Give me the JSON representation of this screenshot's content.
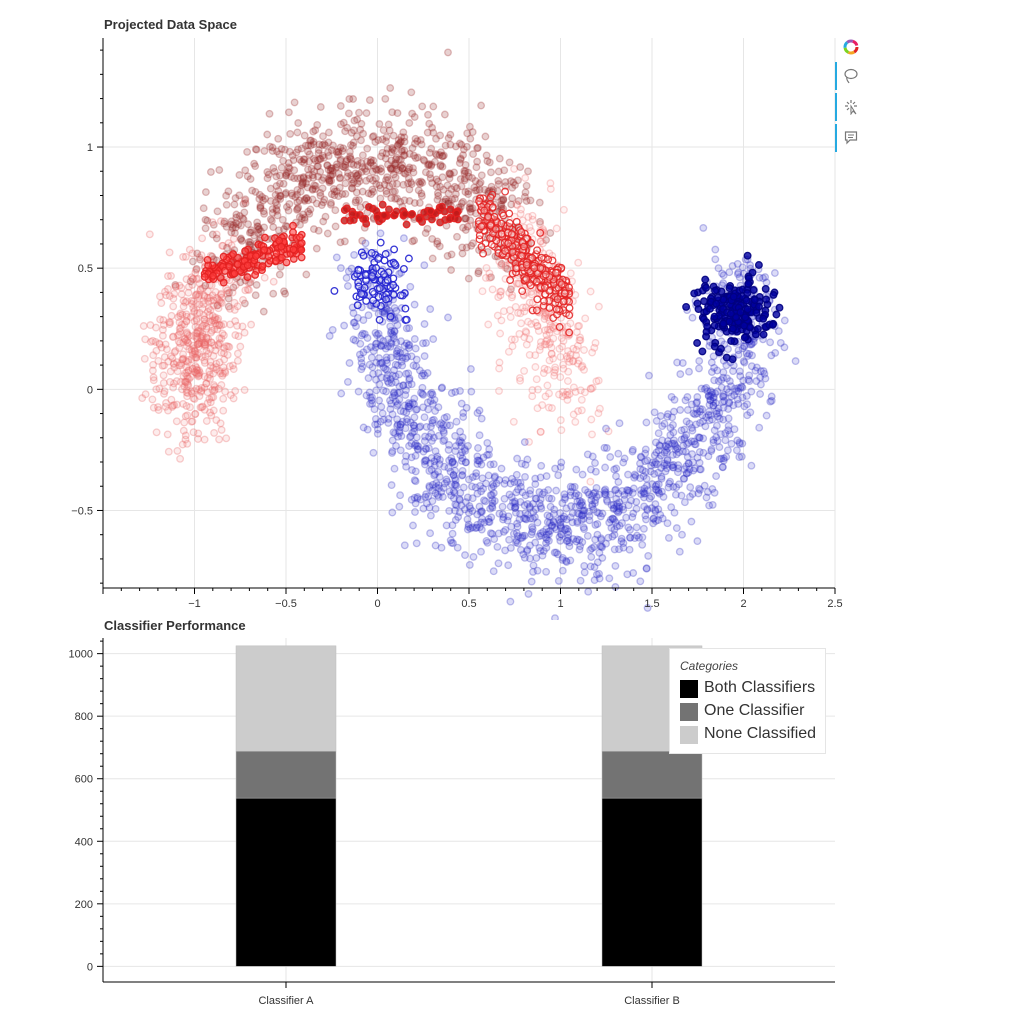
{
  "charts": {
    "scatter_title": "Projected Data Space",
    "bar_title": "Classifier Performance"
  },
  "toolbar": {
    "tools": [
      "lasso-select-icon",
      "tap-select-icon",
      "hover-icon"
    ]
  },
  "legend": {
    "title": "Categories",
    "items": [
      {
        "label": "Both Classifiers",
        "color": "#000000"
      },
      {
        "label": "One Classifier",
        "color": "#737373"
      },
      {
        "label": "None Classified",
        "color": "#cccccc"
      }
    ]
  },
  "chart_data": [
    {
      "type": "scatter",
      "title": "Projected Data Space",
      "xlim": [
        -1.5,
        2.5
      ],
      "ylim": [
        -0.82,
        1.45
      ],
      "xticks": [
        -1,
        -0.5,
        0,
        0.5,
        1,
        1.5,
        2,
        2.5
      ],
      "xtick_labels": [
        "−1",
        "−0.5",
        "0",
        "0.5",
        "1",
        "1.5",
        "2",
        "2.5"
      ],
      "yticks": [
        -0.5,
        0,
        0.5,
        1
      ],
      "ytick_labels": [
        "−0.5",
        "0",
        "0.5",
        "1"
      ],
      "grid": true,
      "series": [
        {
          "colors": {
            "fill": "#8b1a1a",
            "stroke": "#b03030"
          },
          "shape": "upper-moon"
        },
        {
          "colors": {
            "fill": "#ff6b6b",
            "stroke": "#e83030"
          },
          "shape": "upper-moon-left-tail"
        },
        {
          "colors": {
            "fill": "#3a3ad0",
            "stroke": "#2020c0"
          },
          "shape": "lower-moon"
        },
        {
          "colors": {
            "fill": "#ffffff",
            "stroke": "#e32020"
          },
          "shape": "highlight-red"
        },
        {
          "colors": {
            "fill": "#0000a0",
            "stroke": "#000080"
          },
          "shape": "highlight-blue"
        }
      ]
    },
    {
      "type": "bar",
      "title": "Classifier Performance",
      "categories": [
        "Classifier A",
        "Classifier B"
      ],
      "ylim": [
        -50,
        1050
      ],
      "yticks": [
        0,
        200,
        400,
        600,
        800,
        1000
      ],
      "grid": true,
      "legend_position": "top-right",
      "series": [
        {
          "name": "Both Classifiers",
          "color": "#000000",
          "values": [
            538,
            538
          ]
        },
        {
          "name": "One Classifier",
          "color": "#737373",
          "values": [
            150,
            150
          ]
        },
        {
          "name": "None Classified",
          "color": "#cccccc",
          "values": [
            337,
            337
          ]
        }
      ]
    }
  ]
}
